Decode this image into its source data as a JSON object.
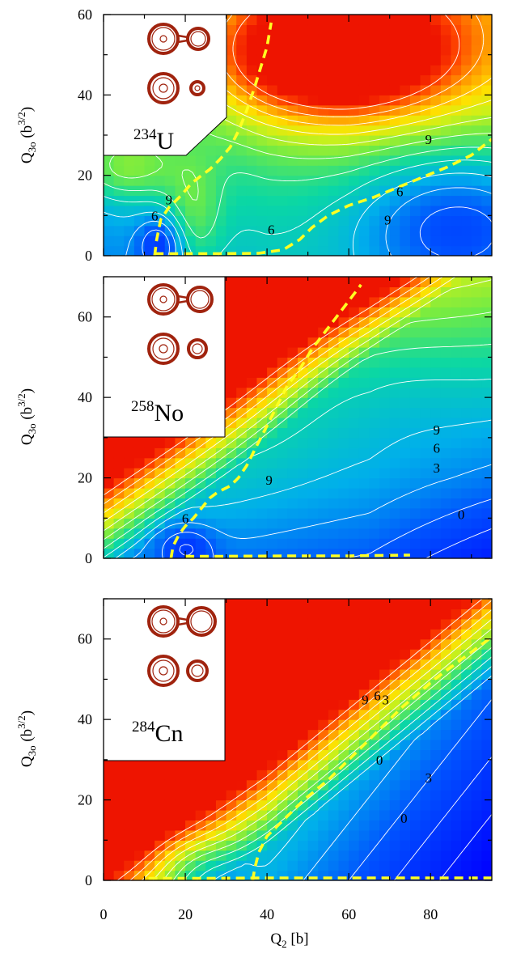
{
  "figure": {
    "xlabel": "Q₂ [b]",
    "ylabel": "Q₃₀ (b³ᐟ²)",
    "x_ticks": [
      "0",
      "20",
      "40",
      "60",
      "80"
    ]
  },
  "chart_data": [
    {
      "type": "heatmap",
      "nucleus": {
        "mass": "234",
        "symbol": "U"
      },
      "xlim": [
        0,
        95
      ],
      "ylim": [
        0,
        60
      ],
      "y_ticks": [
        "0",
        "20",
        "40",
        "60"
      ],
      "contour_labels": [
        {
          "text": "9",
          "x": 16,
          "y": 14
        },
        {
          "text": "6",
          "x": 12.5,
          "y": 10
        },
        {
          "text": "6",
          "x": 41,
          "y": 6.5
        },
        {
          "text": "9",
          "x": 79.5,
          "y": 29
        },
        {
          "text": "6",
          "x": 72.5,
          "y": 16
        },
        {
          "text": "9",
          "x": 69.5,
          "y": 9
        }
      ],
      "fission_paths": [
        [
          [
            12.5,
            0
          ],
          [
            13,
            4
          ],
          [
            14,
            9
          ],
          [
            16,
            12
          ],
          [
            19,
            15
          ],
          [
            21.5,
            18
          ],
          [
            24,
            20
          ],
          [
            26,
            21.5
          ],
          [
            28.5,
            24
          ],
          [
            31,
            27
          ],
          [
            33,
            31
          ],
          [
            35,
            36
          ],
          [
            37,
            42
          ],
          [
            38.5,
            47
          ],
          [
            40,
            52
          ],
          [
            41,
            58
          ]
        ],
        [
          [
            12.5,
            0.5
          ],
          [
            20,
            0.5
          ],
          [
            30,
            0.5
          ],
          [
            38,
            0.6
          ],
          [
            44,
            1.5
          ],
          [
            48,
            4
          ],
          [
            51,
            7
          ],
          [
            55,
            10
          ],
          [
            60,
            12.5
          ],
          [
            66,
            14.5
          ],
          [
            72,
            17
          ],
          [
            78,
            19.5
          ],
          [
            84,
            22
          ],
          [
            90,
            25
          ],
          [
            95,
            29
          ]
        ]
      ]
    },
    {
      "type": "heatmap",
      "nucleus": {
        "mass": "258",
        "symbol": "No"
      },
      "xlim": [
        0,
        95
      ],
      "ylim": [
        0,
        70
      ],
      "y_ticks": [
        "0",
        "20",
        "40",
        "60"
      ],
      "contour_labels": [
        {
          "text": "6",
          "x": 20,
          "y": 10
        },
        {
          "text": "9",
          "x": 40.5,
          "y": 19.5
        },
        {
          "text": "9",
          "x": 81.5,
          "y": 32
        },
        {
          "text": "6",
          "x": 81.5,
          "y": 27.5
        },
        {
          "text": "3",
          "x": 81.5,
          "y": 22.5
        },
        {
          "text": "0",
          "x": 87.5,
          "y": 11
        }
      ],
      "fission_paths": [
        [
          [
            16.5,
            0
          ],
          [
            17,
            3
          ],
          [
            18.5,
            6
          ],
          [
            20,
            8
          ],
          [
            22,
            10
          ],
          [
            24,
            12.5
          ],
          [
            26,
            15
          ],
          [
            28,
            16.5
          ],
          [
            31,
            18
          ],
          [
            33,
            20
          ],
          [
            35,
            23
          ],
          [
            37,
            27
          ],
          [
            39,
            31
          ],
          [
            41,
            35
          ],
          [
            43,
            39
          ],
          [
            45,
            43
          ],
          [
            48,
            47
          ],
          [
            51,
            52
          ],
          [
            54,
            56
          ],
          [
            57,
            60
          ],
          [
            60,
            64
          ],
          [
            63,
            68
          ]
        ],
        [
          [
            20,
            0.5
          ],
          [
            30,
            0.5
          ],
          [
            45,
            0.6
          ],
          [
            60,
            0.6
          ],
          [
            75,
            0.8
          ]
        ]
      ]
    },
    {
      "type": "heatmap",
      "nucleus": {
        "mass": "284",
        "symbol": "Cn"
      },
      "xlim": [
        0,
        95
      ],
      "ylim": [
        0,
        70
      ],
      "y_ticks": [
        "0",
        "20",
        "40",
        "60"
      ],
      "contour_labels": [
        {
          "text": "9",
          "x": 64,
          "y": 45
        },
        {
          "text": "6",
          "x": 67,
          "y": 46
        },
        {
          "text": "3",
          "x": 69,
          "y": 45
        },
        {
          "text": "0",
          "x": 67.5,
          "y": 30
        },
        {
          "text": "3",
          "x": 79.5,
          "y": 25.5
        },
        {
          "text": "0",
          "x": 73.5,
          "y": 15.5
        }
      ],
      "fission_paths": [
        [
          [
            36.5,
            0
          ],
          [
            37,
            3
          ],
          [
            38,
            7
          ],
          [
            40,
            11
          ],
          [
            43,
            14
          ],
          [
            46,
            17
          ],
          [
            49,
            20
          ],
          [
            52,
            22.5
          ],
          [
            55,
            25
          ],
          [
            58,
            28
          ],
          [
            61,
            31
          ],
          [
            64,
            34
          ],
          [
            67,
            37
          ],
          [
            70,
            40
          ],
          [
            73,
            43
          ],
          [
            77,
            46.5
          ],
          [
            81,
            50
          ],
          [
            85,
            53
          ],
          [
            89,
            56
          ],
          [
            95,
            60.5
          ]
        ],
        [
          [
            11,
            0.5
          ],
          [
            25,
            0.5
          ],
          [
            40,
            0.6
          ],
          [
            55,
            0.6
          ],
          [
            70,
            0.6
          ],
          [
            85,
            0.6
          ],
          [
            95,
            0.6
          ]
        ]
      ]
    }
  ],
  "colors": {
    "path": "#ffff22",
    "contour": "#ffffff",
    "shape": "#a0230e"
  }
}
